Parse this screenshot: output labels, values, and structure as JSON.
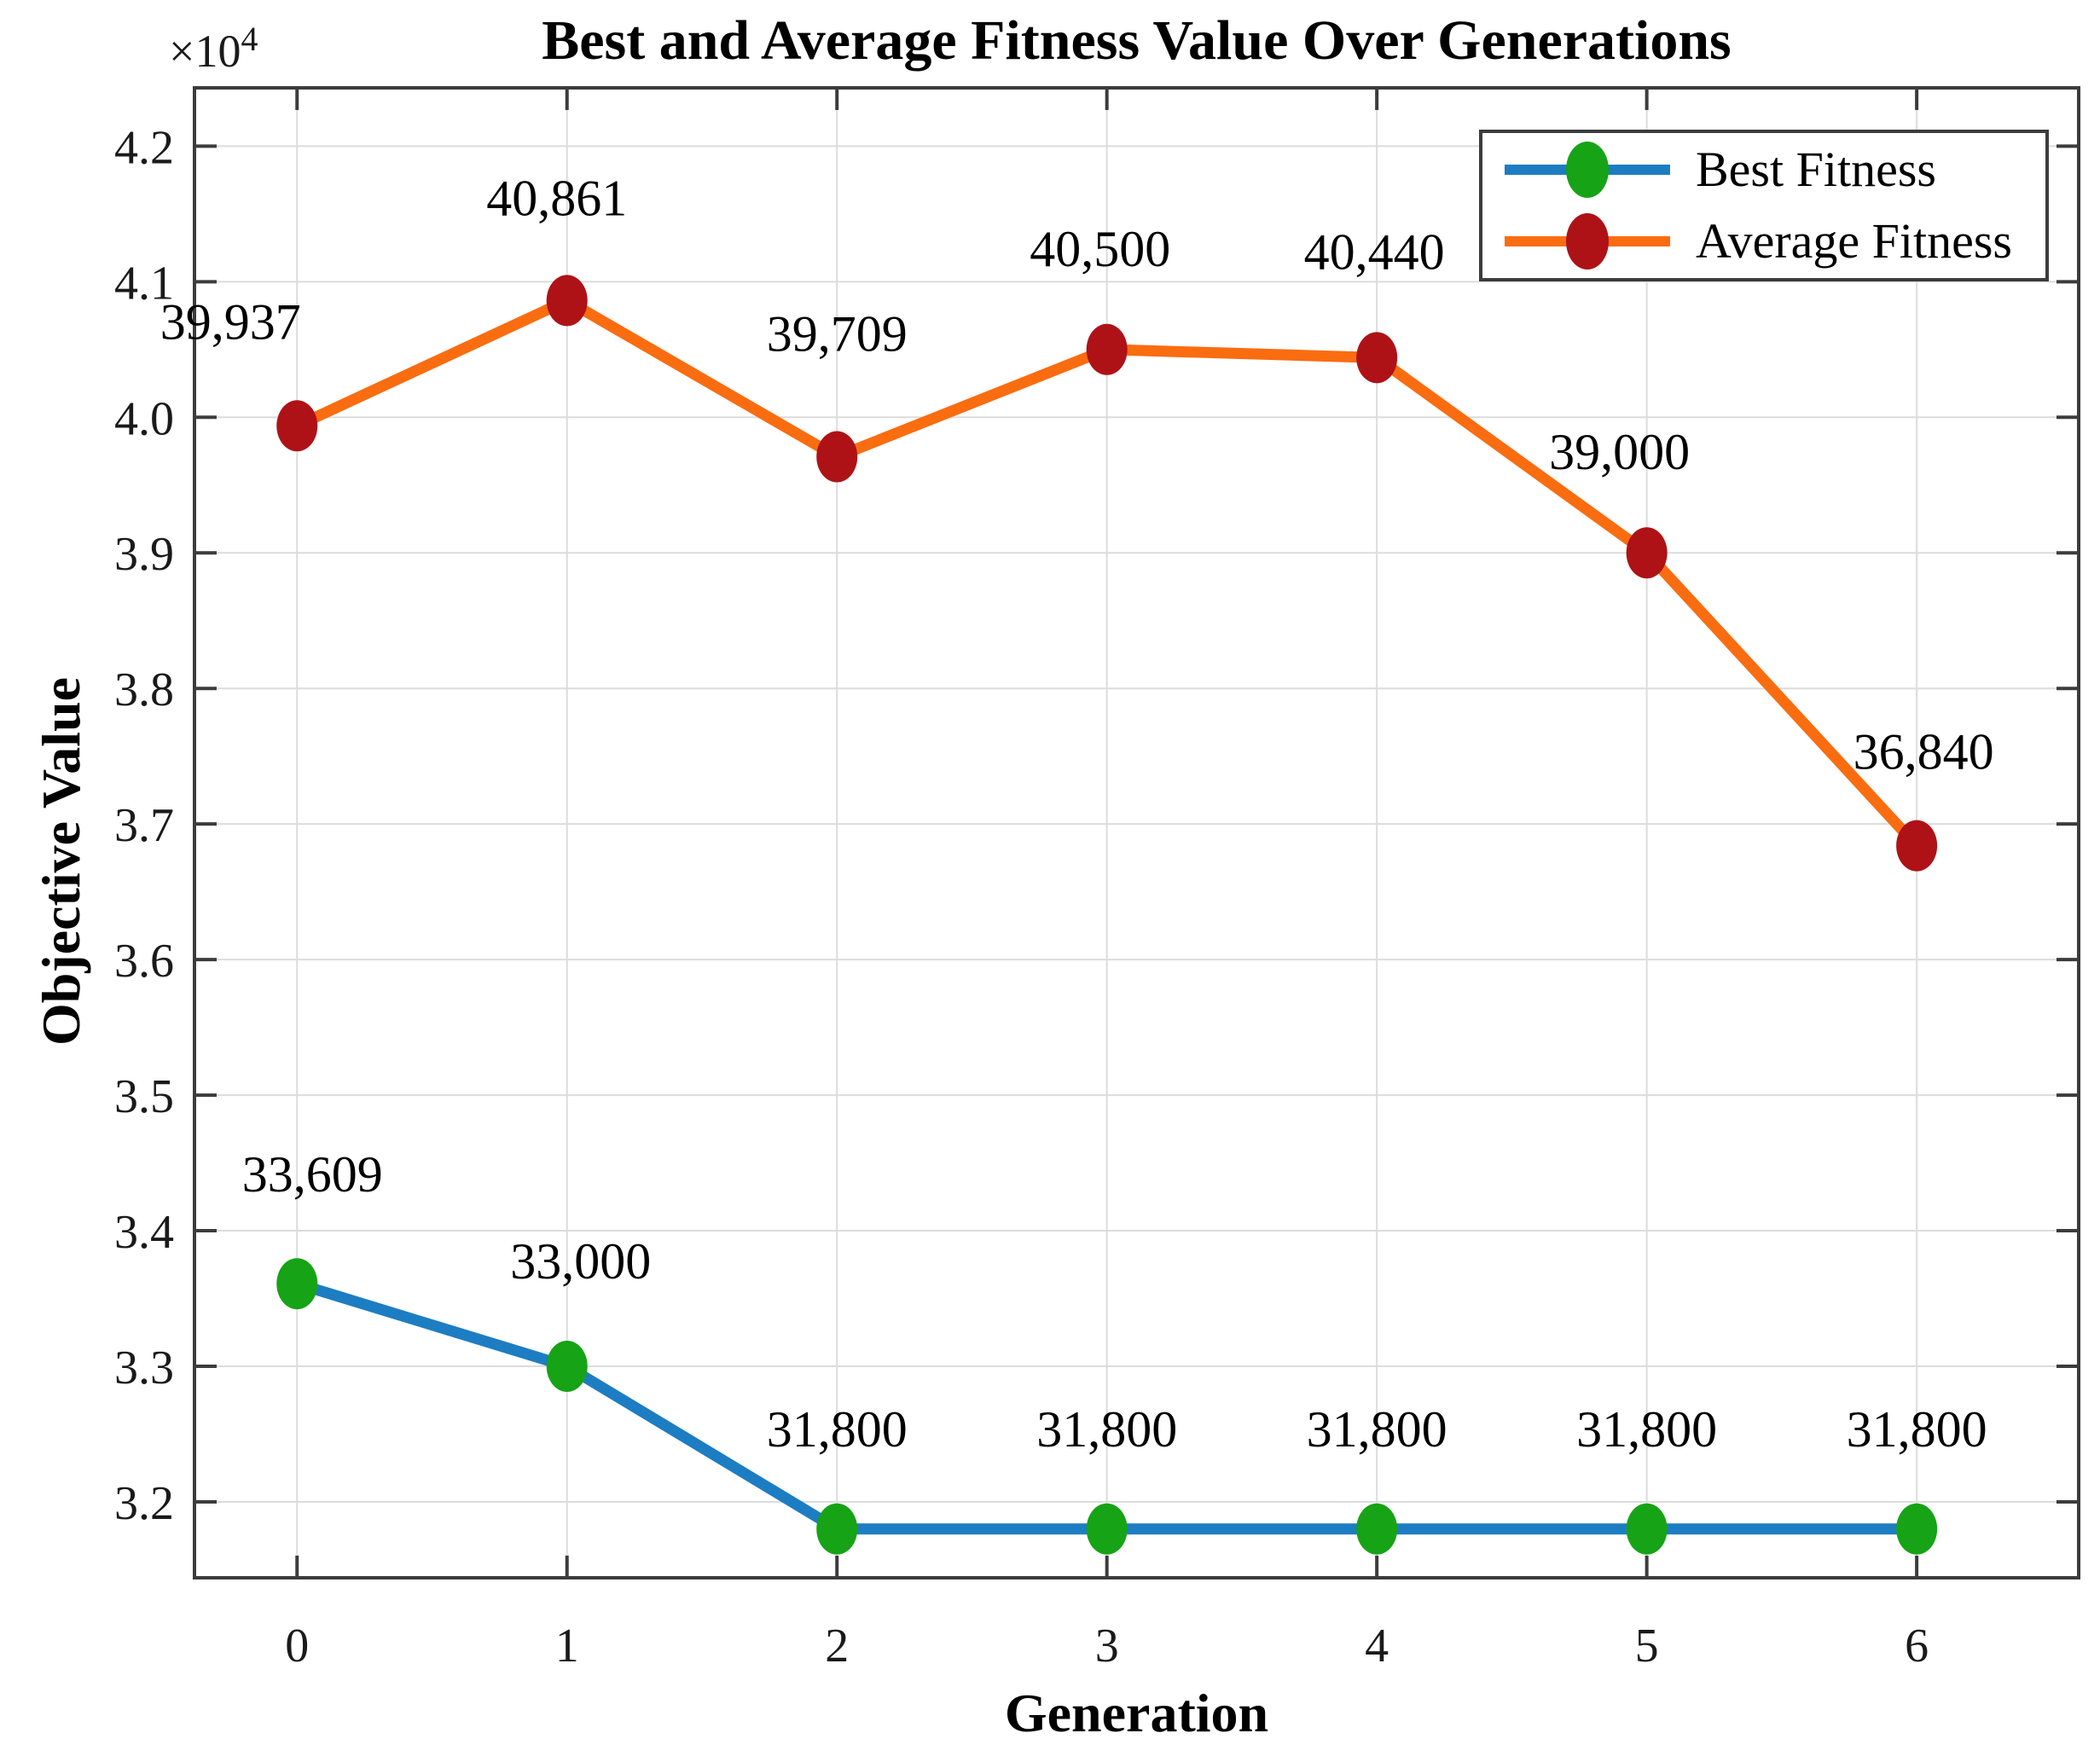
{
  "figure": {
    "title": "Best and Average Fitness Value Over Generations",
    "x_axis": {
      "label": "Generation",
      "tick_labels": [
        "0",
        "1",
        "2",
        "3",
        "4",
        "5",
        "6"
      ]
    },
    "y_axis": {
      "label": "Objective Value",
      "multiplier_base": "×10",
      "multiplier_exponent": "4",
      "tick_labels": [
        "4.2",
        "4.1",
        "4.0",
        "3.9",
        "3.8",
        "3.7",
        "3.6",
        "3.5",
        "3.4",
        "3.3",
        "3.2"
      ]
    }
  },
  "legend": {
    "items": [
      {
        "label": "Best Fitness"
      },
      {
        "label": "Average Fitness"
      }
    ]
  },
  "chart_data": {
    "type": "line",
    "title": "Best and Average Fitness Value Over Generations",
    "xlabel": "Generation",
    "ylabel": "Objective Value",
    "x": [
      0,
      1,
      2,
      3,
      4,
      5,
      6
    ],
    "x_tick_values": [
      0,
      1,
      2,
      3,
      4,
      5,
      6
    ],
    "y_tick_values": [
      42000,
      41000,
      40000,
      39000,
      38000,
      37000,
      36000,
      35000,
      34000,
      33000,
      32000
    ],
    "xlim": [
      -0.38,
      6.6
    ],
    "ylim": [
      31440,
      42430
    ],
    "grid": true,
    "legend_position": "top-right",
    "series": [
      {
        "name": "Best Fitness",
        "values": [
          33609,
          33000,
          31800,
          31800,
          31800,
          31800,
          31800
        ],
        "point_labels": [
          "33,609",
          "33,000",
          "31,800",
          "31,800",
          "31,800",
          "31,800",
          "31,800"
        ],
        "line_color": "#1d7dc2",
        "marker_color": "#16a316"
      },
      {
        "name": "Average Fitness",
        "values": [
          39937,
          40861,
          39709,
          40500,
          40440,
          39000,
          36840
        ],
        "point_labels": [
          "39,937",
          "40,861",
          "39,709",
          "40,500",
          "40,440",
          "39,000",
          "36,840"
        ],
        "line_color": "#fa6c10",
        "marker_color": "#ae1216"
      }
    ]
  },
  "colors": {
    "background": "#ffffff",
    "grid": "#dcdcdc",
    "axis_box": "#3c3c3c",
    "tick_text": "#1a1a1a",
    "annotation_text": "#000000"
  }
}
